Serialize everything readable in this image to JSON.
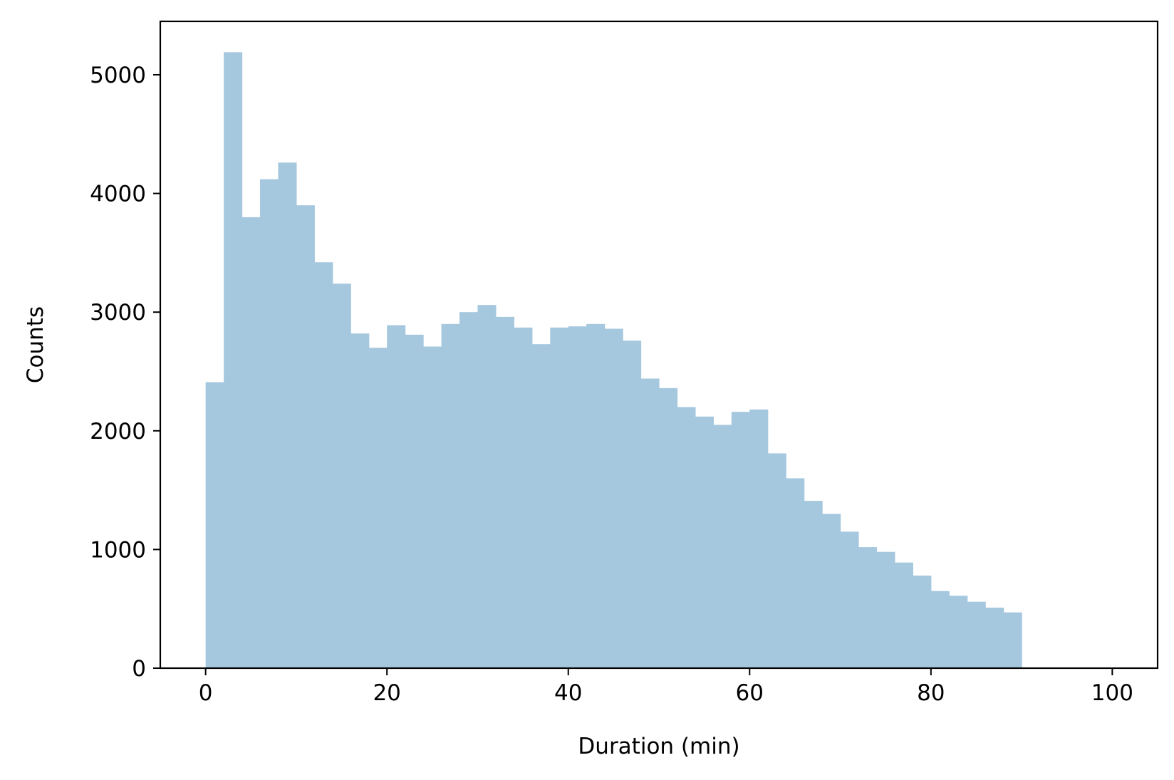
{
  "chart_data": {
    "type": "bar",
    "title": "",
    "xlabel": "Duration (min)",
    "ylabel": "Counts",
    "xlim": [
      -5,
      105
    ],
    "ylim": [
      0,
      5450
    ],
    "bin_width": 2,
    "bins_x": [
      0,
      2,
      4,
      6,
      8,
      10,
      12,
      14,
      16,
      18,
      20,
      22,
      24,
      26,
      28,
      30,
      32,
      34,
      36,
      38,
      40,
      42,
      44,
      46,
      48,
      50,
      52,
      54,
      56,
      58,
      60,
      62,
      64,
      66,
      68,
      70,
      72,
      74,
      76,
      78,
      80,
      82,
      84,
      86,
      88,
      90,
      92,
      94,
      96,
      98
    ],
    "values": [
      2410,
      5190,
      3800,
      4120,
      4260,
      3900,
      3420,
      3240,
      2820,
      2700,
      2890,
      2810,
      2710,
      2900,
      3000,
      3060,
      2960,
      2870,
      2730,
      2870,
      2880,
      2900,
      2860,
      2760,
      2440,
      2360,
      2200,
      2120,
      2050,
      2160,
      2180,
      1810,
      1600,
      1410,
      1300,
      1150,
      1020,
      980,
      890,
      780,
      650,
      610,
      560,
      510,
      470,
      0,
      0,
      5,
      5,
      0
    ],
    "xticks": [
      "0",
      "20",
      "40",
      "60",
      "80",
      "100"
    ],
    "xtick_values": [
      0,
      20,
      40,
      60,
      80,
      100
    ],
    "yticks": [
      "0",
      "1000",
      "2000",
      "3000",
      "4000",
      "5000"
    ],
    "ytick_values": [
      0,
      1000,
      2000,
      3000,
      4000,
      5000
    ],
    "bar_color": "#a6c8df",
    "grid": false,
    "legend": "none"
  }
}
